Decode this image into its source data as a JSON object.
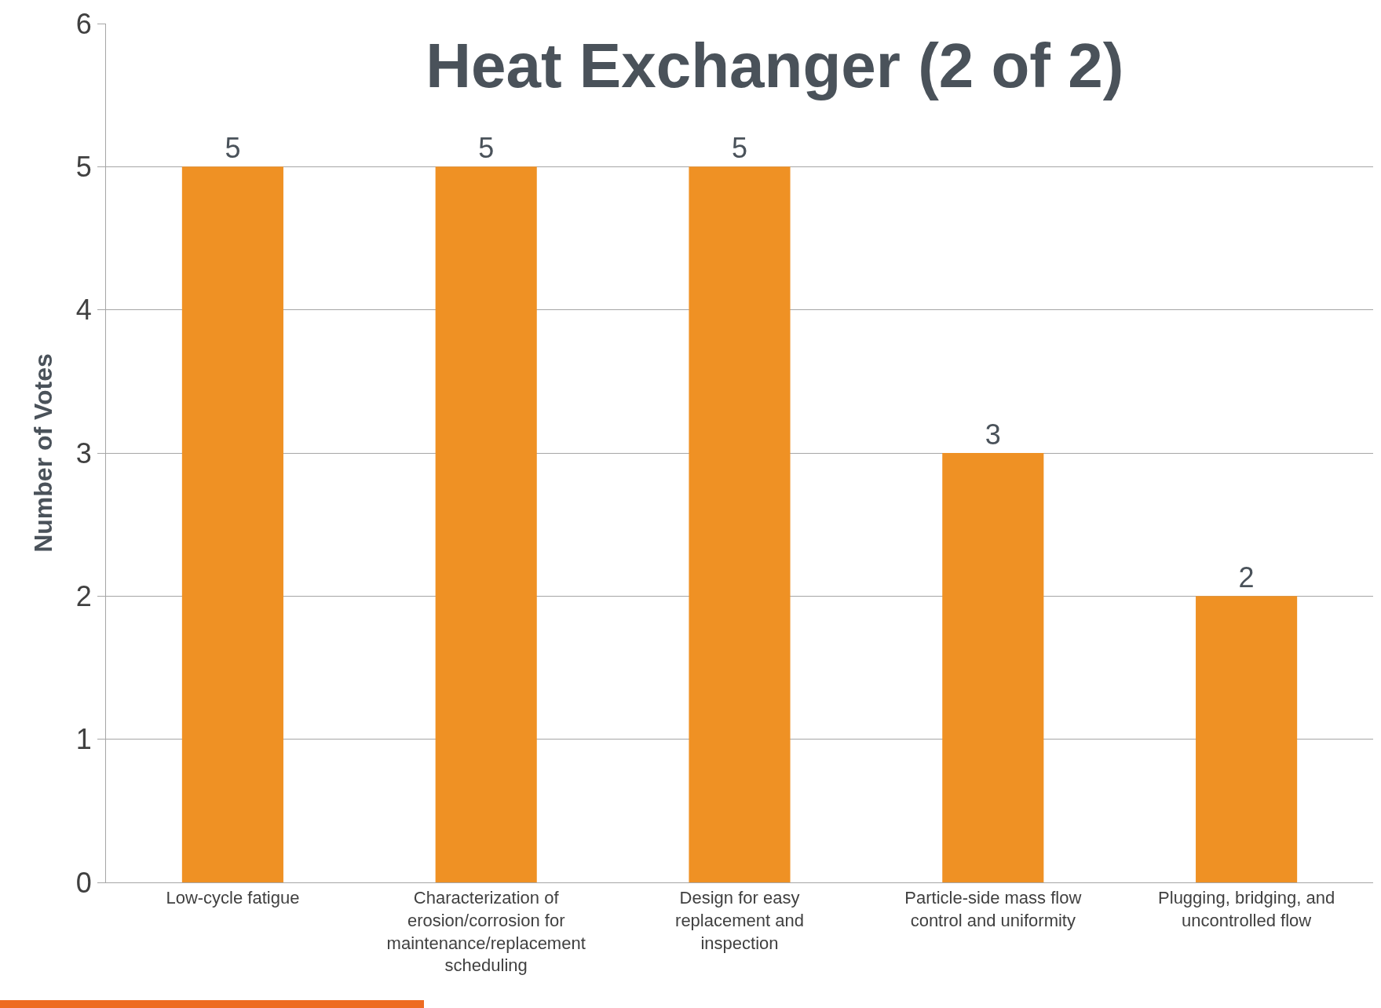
{
  "chart_data": {
    "type": "bar",
    "title": "Heat Exchanger (2 of 2)",
    "ylabel": "Number of Votes",
    "categories": [
      "Low-cycle fatigue",
      "Characterization of erosion/corrosion for maintenance/replacement scheduling",
      "Design for easy replacement and inspection",
      "Particle-side mass flow control and uniformity",
      "Plugging, bridging, and uncontrolled flow"
    ],
    "values": [
      5,
      5,
      5,
      3,
      2
    ],
    "color": "#ef9124",
    "ylim": [
      0,
      6
    ],
    "yticks": [
      0,
      1,
      2,
      3,
      4,
      5,
      6
    ],
    "grid": "y",
    "data_labels": true
  }
}
